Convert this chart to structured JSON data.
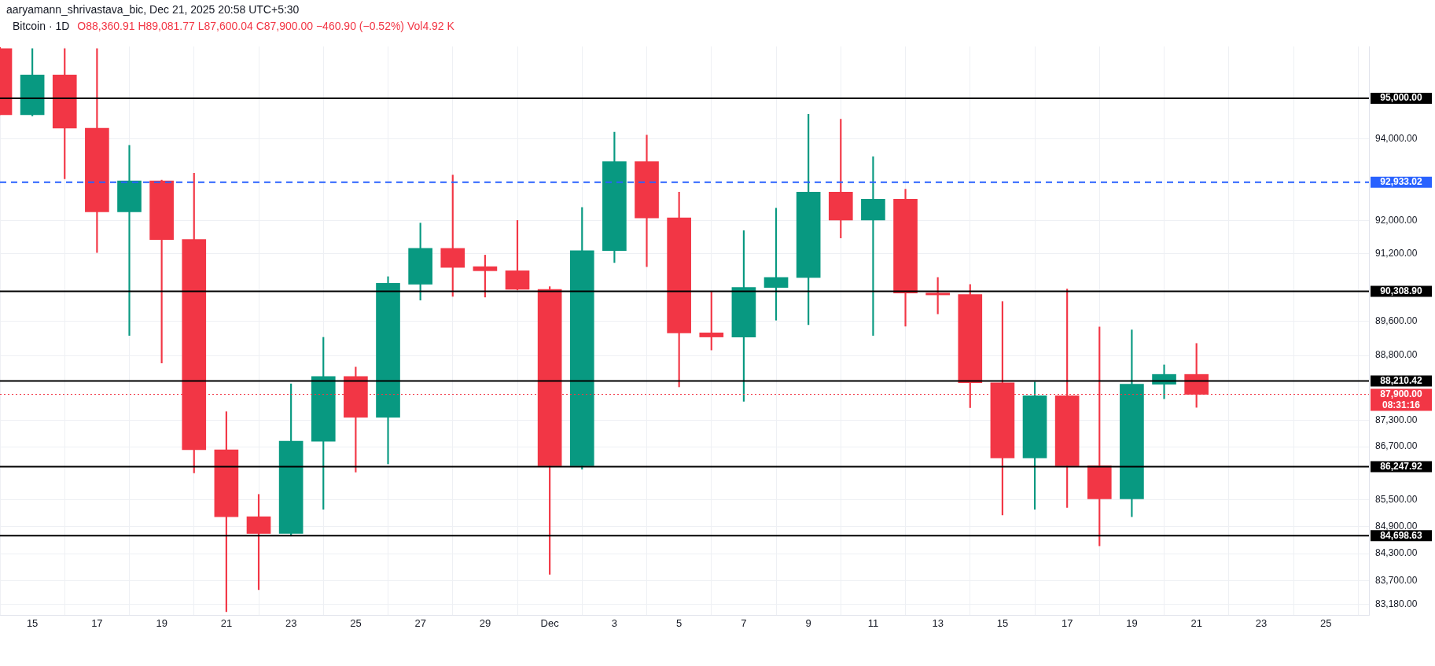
{
  "chart_data": {
    "type": "candlestick",
    "title": "Bitcoin · 1D",
    "subtitle": "O88,360.91 H89,081.77 L87,600.04 C87,900.00 −460.90 (−0.52%) Vol4.92 K",
    "annotations": [
      "aaryamann_shrivastava_bic, Dec 21, 2025 20:58 UTC+5:30"
    ],
    "x": [
      "2025-11-14",
      "2025-11-15",
      "2025-11-16",
      "2025-11-17",
      "2025-11-18",
      "2025-11-19",
      "2025-11-20",
      "2025-11-21",
      "2025-11-22",
      "2025-11-23",
      "2025-11-24",
      "2025-11-25",
      "2025-11-26",
      "2025-11-27",
      "2025-11-28",
      "2025-11-29",
      "2025-11-30",
      "2025-12-01",
      "2025-12-02",
      "2025-12-03",
      "2025-12-04",
      "2025-12-05",
      "2025-12-06",
      "2025-12-07",
      "2025-12-08",
      "2025-12-09",
      "2025-12-10",
      "2025-12-11",
      "2025-12-12",
      "2025-12-13",
      "2025-12-14",
      "2025-12-15",
      "2025-12-16",
      "2025-12-17",
      "2025-12-18",
      "2025-12-19",
      "2025-12-20",
      "2025-12-21"
    ],
    "ohlc": [
      [
        96250,
        96280,
        94592,
        94592
      ],
      [
        94592,
        96250,
        94565,
        95587
      ],
      [
        95587,
        96250,
        93017,
        94260
      ],
      [
        94260,
        96250,
        91233,
        92211
      ],
      [
        92211,
        93838,
        89269,
        92962
      ],
      [
        92962,
        92981,
        88626,
        91546
      ],
      [
        91546,
        93152,
        86108,
        86631
      ],
      [
        86631,
        87500,
        83027,
        85122
      ],
      [
        85122,
        85622,
        83508,
        84748
      ],
      [
        84748,
        88142,
        84691,
        86826
      ],
      [
        86826,
        89225,
        85288,
        88314
      ],
      [
        88314,
        88531,
        86125,
        87371
      ],
      [
        87371,
        90656,
        86310,
        90497
      ],
      [
        90480,
        91941,
        90101,
        91332
      ],
      [
        91332,
        93107,
        90189,
        90877
      ],
      [
        90895,
        91171,
        90172,
        90797
      ],
      [
        90797,
        92004,
        90340,
        90356
      ],
      [
        90356,
        90417,
        83843,
        86268
      ],
      [
        86268,
        92319,
        86192,
        91278
      ],
      [
        91278,
        94159,
        90993,
        93435
      ],
      [
        93435,
        94086,
        90895,
        92067
      ],
      [
        92067,
        92690,
        88073,
        89330
      ],
      [
        89330,
        90303,
        88929,
        89233
      ],
      [
        89233,
        91758,
        87739,
        90400
      ],
      [
        90400,
        92301,
        89627,
        90638
      ],
      [
        90638,
        94602,
        89522,
        92690
      ],
      [
        92690,
        94482,
        91582,
        92013
      ],
      [
        92013,
        93554,
        89269,
        92518
      ],
      [
        92518,
        92762,
        89486,
        90268
      ],
      [
        90268,
        90638,
        89776,
        90224
      ],
      [
        90233,
        90471,
        87593,
        88168
      ],
      [
        88168,
        90066,
        85163,
        86445
      ],
      [
        86445,
        88185,
        85288,
        87867
      ],
      [
        87867,
        90365,
        85330,
        86268
      ],
      [
        86268,
        89469,
        84476,
        85521
      ],
      [
        85521,
        89399,
        85122,
        88133
      ],
      [
        88133,
        88583,
        87799,
        88360.91
      ],
      [
        88360.91,
        89081.77,
        87600.04,
        87900.0
      ]
    ],
    "colors": [
      "#f23645",
      "#089981",
      "#f23645",
      "#f23645",
      "#089981",
      "#f23645",
      "#f23645",
      "#f23645",
      "#f23645",
      "#089981",
      "#089981",
      "#f23645",
      "#089981",
      "#089981",
      "#f23645",
      "#f23645",
      "#f23645",
      "#f23645",
      "#089981",
      "#089981",
      "#f23645",
      "#f23645",
      "#f23645",
      "#089981",
      "#089981",
      "#089981",
      "#f23645",
      "#089981",
      "#f23645",
      "#f23645",
      "#f23645",
      "#f23645",
      "#089981",
      "#f23645",
      "#f23645",
      "#089981",
      "#089981",
      "#f23645"
    ],
    "xlim": [
      "2025-11-14",
      "2025-12-26T08:00"
    ],
    "xticks": [
      {
        "value": "2025-11-15",
        "label": "15"
      },
      {
        "value": "2025-11-17",
        "label": "17"
      },
      {
        "value": "2025-11-19",
        "label": "19"
      },
      {
        "value": "2025-11-21",
        "label": "21"
      },
      {
        "value": "2025-11-23",
        "label": "23"
      },
      {
        "value": "2025-11-25",
        "label": "25"
      },
      {
        "value": "2025-11-27",
        "label": "27"
      },
      {
        "value": "2025-11-29",
        "label": "29"
      },
      {
        "value": "2025-12-01",
        "label": "Dec"
      },
      {
        "value": "2025-12-03",
        "label": "3"
      },
      {
        "value": "2025-12-05",
        "label": "5"
      },
      {
        "value": "2025-12-07",
        "label": "7"
      },
      {
        "value": "2025-12-09",
        "label": "9"
      },
      {
        "value": "2025-12-11",
        "label": "11"
      },
      {
        "value": "2025-12-13",
        "label": "13"
      },
      {
        "value": "2025-12-15",
        "label": "15"
      },
      {
        "value": "2025-12-17",
        "label": "17"
      },
      {
        "value": "2025-12-19",
        "label": "19"
      },
      {
        "value": "2025-12-21",
        "label": "21"
      },
      {
        "value": "2025-12-23",
        "label": "23"
      },
      {
        "value": "2025-12-25",
        "label": "25"
      }
    ],
    "ylim": [
      82950,
      96300
    ],
    "yticks": [
      {
        "value": 94000,
        "label": "94,000.00"
      },
      {
        "value": 92000,
        "label": "92,000.00"
      },
      {
        "value": 91200,
        "label": "91,200.00"
      },
      {
        "value": 89600,
        "label": "89,600.00"
      },
      {
        "value": 88800,
        "label": "88,800.00"
      },
      {
        "value": 87300,
        "label": "87,300.00"
      },
      {
        "value": 86700,
        "label": "86,700.00"
      },
      {
        "value": 85500,
        "label": "85,500.00"
      },
      {
        "value": 84900,
        "label": "84,900.00"
      },
      {
        "value": 84300,
        "label": "84,300.00"
      },
      {
        "value": 83700,
        "label": "83,700.00"
      },
      {
        "value": 83180,
        "label": "83,180.00"
      }
    ],
    "log": true,
    "grid": true,
    "ref_lines": [
      {
        "axis": "y",
        "value": 95000,
        "label": "95,000.00",
        "color": "#000000",
        "line_style": "solid"
      },
      {
        "axis": "y",
        "value": 92933.02,
        "label": "92,933.02",
        "color": "#2962ff",
        "line_style": "dashed"
      },
      {
        "axis": "y",
        "value": 90308.9,
        "label": "90,308.90",
        "color": "#000000",
        "line_style": "solid"
      },
      {
        "axis": "y",
        "value": 88210.42,
        "label": "88,210.42",
        "color": "#000000",
        "line_style": "solid"
      },
      {
        "axis": "y",
        "value": 87900.0,
        "label": "87,900.00\n08:31:16",
        "color": "#f23645",
        "line_style": "dotted"
      },
      {
        "axis": "y",
        "value": 86247.92,
        "label": "86,247.92",
        "color": "#000000",
        "line_style": "solid"
      },
      {
        "axis": "y",
        "value": 84698.63,
        "label": "84,698.63",
        "color": "#000000",
        "line_style": "solid"
      }
    ]
  }
}
